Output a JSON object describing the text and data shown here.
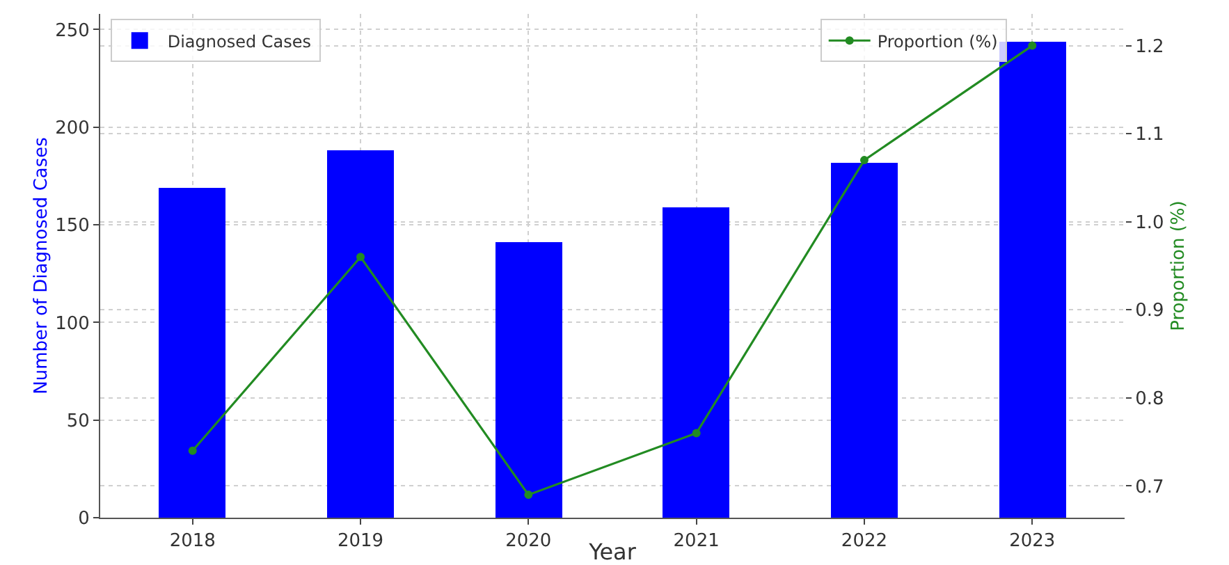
{
  "chart_data": {
    "type": "bar",
    "xlabel": "Year",
    "ylabel": "Number of Diagnosed Cases",
    "y2label": "Proportion (%)",
    "categories": [
      "2018",
      "2019",
      "2020",
      "2021",
      "2022",
      "2023"
    ],
    "series": [
      {
        "name": "Diagnosed Cases",
        "color": "#0000ff",
        "values": [
          169,
          188,
          141,
          159,
          182,
          244
        ]
      },
      {
        "name": "Proportion (%)",
        "type": "line",
        "axis": "y2",
        "color": "#228b22",
        "marker": "circle",
        "values": [
          0.74,
          0.96,
          0.69,
          0.76,
          1.07,
          1.2
        ]
      }
    ],
    "ylim": [
      0,
      258
    ],
    "yticks": [
      0,
      50,
      100,
      150,
      200,
      250
    ],
    "y2lim": [
      0.664,
      1.236
    ],
    "y2ticks": [
      0.7,
      0.8,
      0.9,
      {
        "value": 1,
        "label": "1.0"
      },
      1.1,
      1.2
    ],
    "grid": true,
    "legend": "top"
  }
}
